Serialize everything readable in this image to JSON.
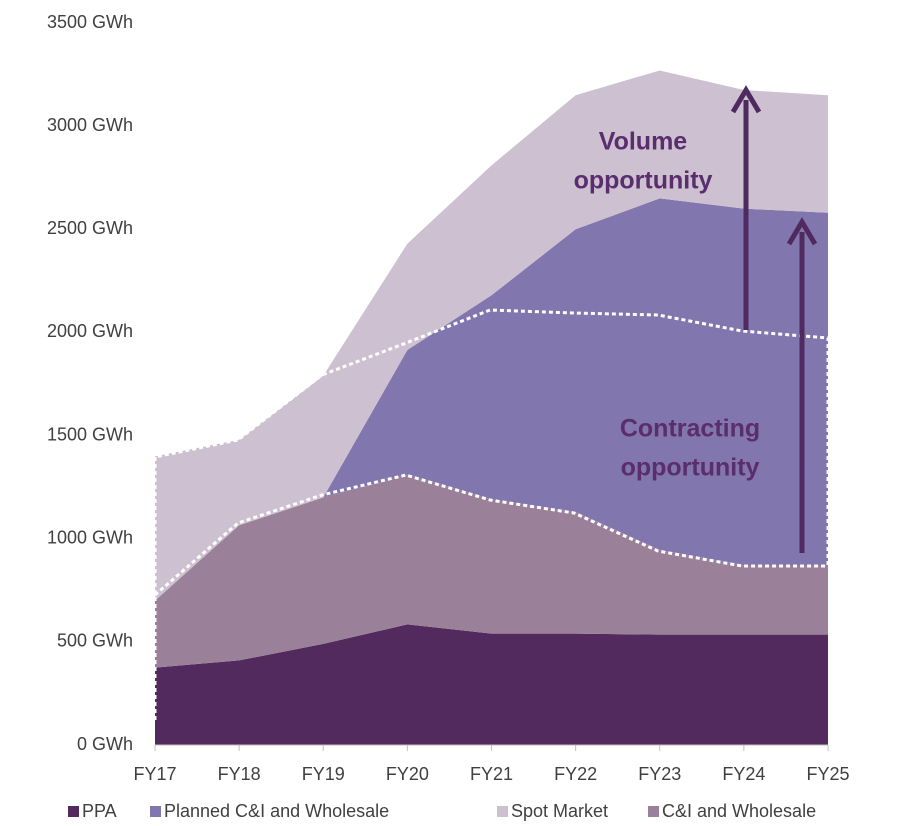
{
  "chart_data": {
    "type": "stacked_area",
    "categories": [
      "FY17",
      "FY18",
      "FY19",
      "FY20",
      "FY21",
      "FY22",
      "FY23",
      "FY24",
      "FY25"
    ],
    "series": [
      {
        "name": "PPA",
        "color": "#522a5e",
        "values": [
          375,
          410,
          490,
          585,
          540,
          540,
          535,
          535,
          535
        ]
      },
      {
        "name": "C&I and Wholesale",
        "color": "#9a8099",
        "values": [
          325,
          655,
          710,
          725,
          650,
          590,
          410,
          335,
          335
        ]
      },
      {
        "name": "Planned C&I and Wholesale",
        "color": "#8276ae",
        "values": [
          0,
          0,
          0,
          605,
          990,
          1370,
          1705,
          1730,
          1710
        ]
      },
      {
        "name": "Spot Market",
        "color": "#cdc0d0",
        "values": [
          700,
          415,
          590,
          515,
          630,
          650,
          620,
          575,
          570
        ]
      }
    ],
    "ylim": [
      0,
      3500
    ],
    "yticks": [
      {
        "value": 0,
        "label": "0 GWh"
      },
      {
        "value": 500,
        "label": "500 GWh"
      },
      {
        "value": 1000,
        "label": "1000 GWh"
      },
      {
        "value": 1500,
        "label": "1500 GWh"
      },
      {
        "value": 2000,
        "label": "2000 GWh"
      },
      {
        "value": 2500,
        "label": "2500 GWh"
      },
      {
        "value": 3000,
        "label": "3000 GWh"
      },
      {
        "value": 3500,
        "label": "3500 GWh"
      }
    ],
    "annotations": [
      [
        "Volume",
        "opportunity"
      ],
      [
        "Contracting",
        "opportunity"
      ]
    ]
  }
}
